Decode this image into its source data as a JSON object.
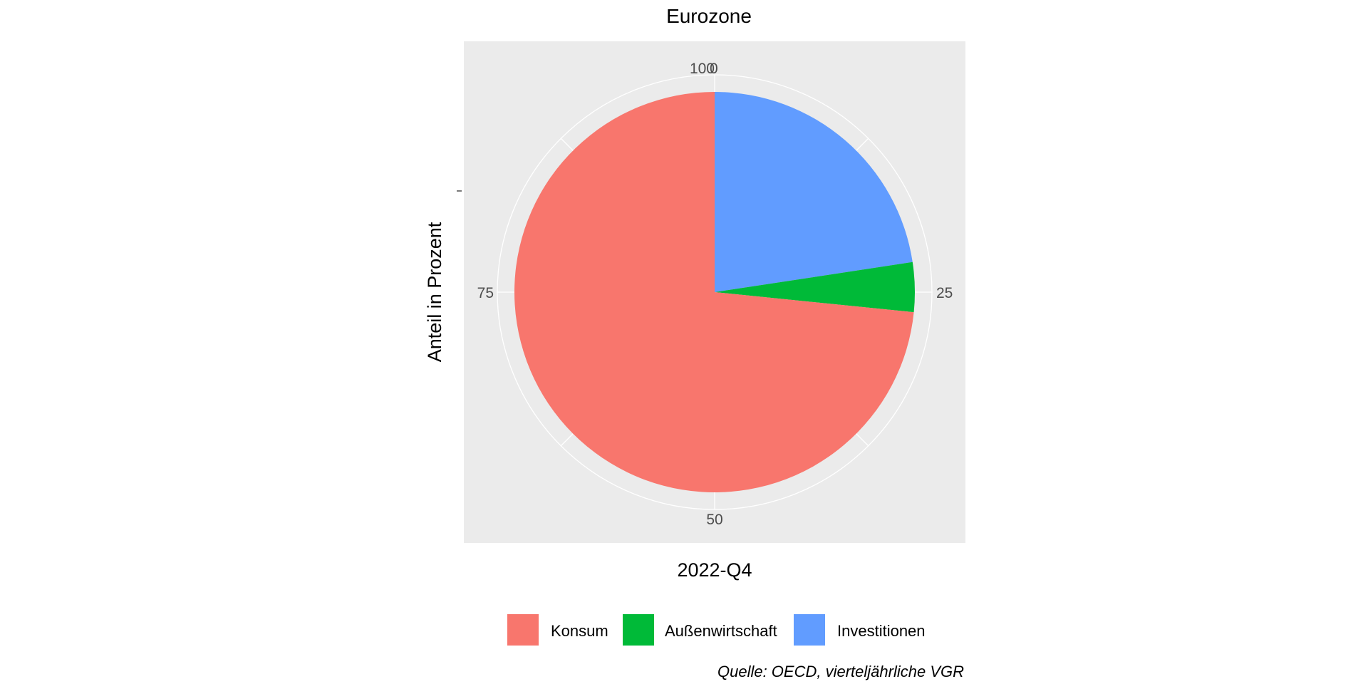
{
  "chart_data": {
    "type": "pie",
    "title": "Eurozone",
    "xlabel": "2022-Q4",
    "ylabel": "Anteil in Prozent",
    "caption": "Quelle: OECD, vierteljährliche VGR",
    "axis_ticks": [
      "100",
      "0",
      "25",
      "50",
      "75"
    ],
    "slices": [
      {
        "label": "Investitionen",
        "value": 22.6,
        "color": "#619cff"
      },
      {
        "label": "Außenwirtschaft",
        "value": 4.0,
        "color": "#00ba38"
      },
      {
        "label": "Konsum",
        "value": 73.4,
        "color": "#f8766d"
      }
    ],
    "legend": [
      {
        "label": "Konsum",
        "color": "#f8766d"
      },
      {
        "label": "Außenwirtschaft",
        "color": "#00ba38"
      },
      {
        "label": "Investitionen",
        "color": "#619cff"
      }
    ],
    "legend_position": "bottom",
    "grid": true
  }
}
